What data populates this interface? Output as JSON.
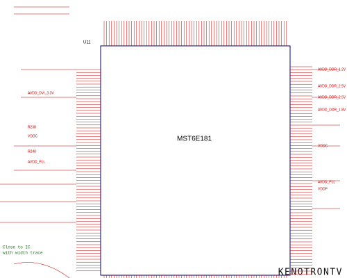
{
  "schematic": {
    "ic": {
      "ref": "U11",
      "part": "MST6E181"
    },
    "left_nets": [
      "AVDD_DVI_3.3V",
      "VDDC",
      "R238",
      "R240",
      "AVDD_PLL"
    ],
    "right_nets": [
      "AVDD_DDR_1.2V",
      "AVDD_DDR_2.5V",
      "AVDD_DDR_2.5V",
      "AVDD_DDR_1.8V",
      "VDDC",
      "AVDD_PLL",
      "VDDP"
    ],
    "notes": [
      "Close to IC",
      "with width trace"
    ],
    "watermark": "KENOTRONTV"
  }
}
